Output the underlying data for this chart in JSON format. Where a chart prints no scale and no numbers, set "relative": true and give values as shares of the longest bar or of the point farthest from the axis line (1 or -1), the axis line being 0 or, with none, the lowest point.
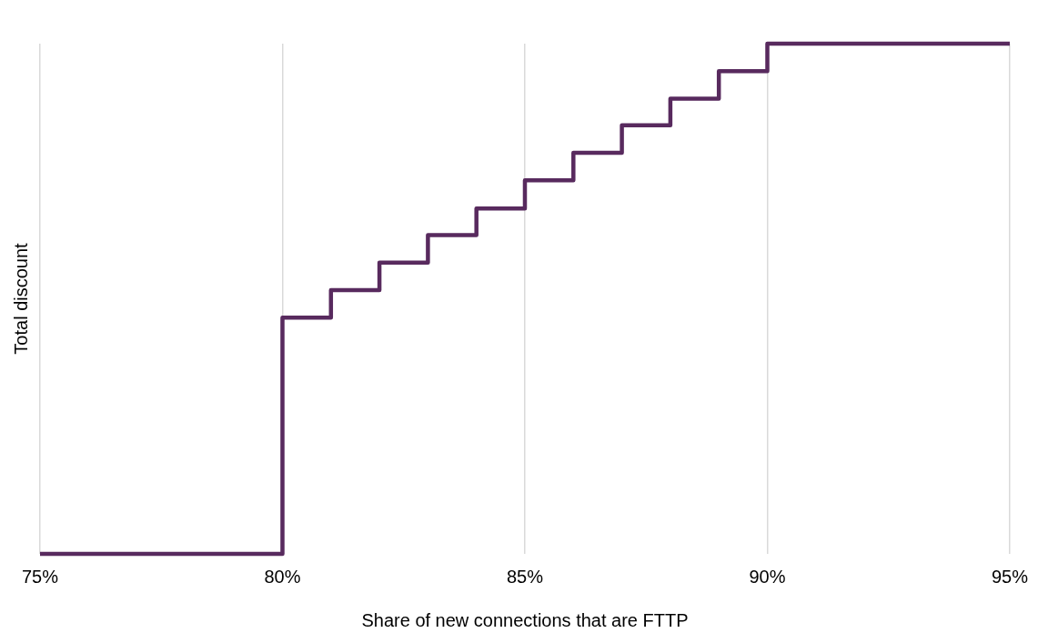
{
  "chart_data": {
    "type": "step",
    "xlabel": "Share of new connections that are FTTP",
    "ylabel": "Total discount",
    "relative": true,
    "x": [
      75,
      80,
      81,
      82,
      83,
      84,
      85,
      86,
      87,
      88,
      89,
      90,
      95
    ],
    "values": [
      0,
      0.463,
      0.517,
      0.571,
      0.625,
      0.677,
      0.732,
      0.786,
      0.84,
      0.892,
      0.946,
      1,
      1
    ],
    "color": "#582a5e",
    "xlim": [
      75,
      95
    ],
    "xticks": [
      {
        "value": 75,
        "label": "75%"
      },
      {
        "value": 80,
        "label": "80%"
      },
      {
        "value": 85,
        "label": "85%"
      },
      {
        "value": 90,
        "label": "90%"
      },
      {
        "value": 95,
        "label": "95%"
      }
    ],
    "grid": "x",
    "legend": false,
    "marker": "none",
    "line_style": "solid"
  }
}
